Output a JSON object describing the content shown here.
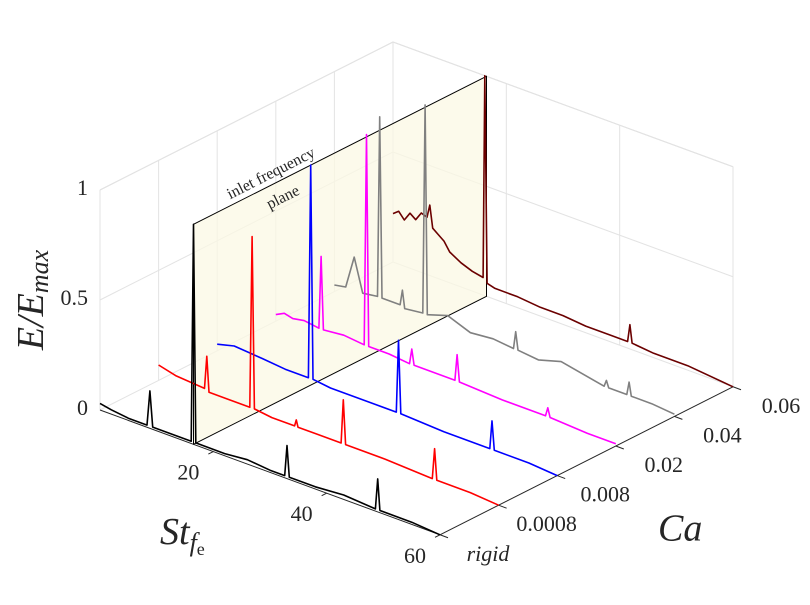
{
  "chart_data": {
    "type": "waterfall",
    "ylabel": "E/E",
    "ylabel_sub": "max",
    "xlabel": "St",
    "xlabel_sub": "f",
    "xlabel_subsub": "e",
    "zlabel": "Ca",
    "categories": [
      "rigid",
      "0.0008",
      "0.008",
      "0.02",
      "0.04",
      "0.06"
    ],
    "xlim": [
      0,
      60
    ],
    "xticks": [
      20,
      40,
      60
    ],
    "ylim": [
      0,
      1
    ],
    "yticks": [
      0,
      0.5,
      1
    ],
    "grid": true,
    "annotation": {
      "text": [
        "inlet frequency",
        "plane"
      ],
      "x": 16.5
    },
    "series": [
      {
        "color": "#000000",
        "x": [
          0,
          2,
          5,
          8.3,
          8.8,
          9.3,
          12,
          16.1,
          16.5,
          16.9,
          22,
          26,
          30,
          32.6,
          33,
          33.4,
          38,
          43,
          48.6,
          49,
          49.4,
          55,
          60
        ],
        "values": [
          0.03,
          0.02,
          0.01,
          0.01,
          0.17,
          0.01,
          0.01,
          0.01,
          1.0,
          0.01,
          0.01,
          0.02,
          0.01,
          0.01,
          0.15,
          0.01,
          0.01,
          0.02,
          0.01,
          0.15,
          0.01,
          0.01,
          0.0
        ]
      },
      {
        "color": "#ff0000",
        "x": [
          0,
          3,
          8.1,
          8.5,
          8.9,
          12,
          16.1,
          16.5,
          16.9,
          20,
          24,
          24.3,
          24.6,
          28,
          32.2,
          32.6,
          33,
          40,
          48.3,
          48.7,
          49.1,
          55,
          60
        ],
        "values": [
          0.07,
          0.05,
          0.04,
          0.19,
          0.03,
          0.03,
          0.03,
          0.81,
          0.03,
          0.02,
          0.02,
          0.05,
          0.02,
          0.02,
          0.02,
          0.22,
          0.02,
          0.02,
          0.01,
          0.15,
          0.01,
          0.01,
          0.0
        ]
      },
      {
        "color": "#0000ff",
        "x": [
          0,
          3,
          8,
          12,
          16.1,
          16.5,
          16.9,
          20,
          28,
          31.6,
          32,
          32.4,
          40,
          48.1,
          48.5,
          48.9,
          55,
          60
        ],
        "values": [
          0.03,
          0.05,
          0.04,
          0.03,
          0.03,
          1.0,
          0.03,
          0.02,
          0.02,
          0.02,
          0.35,
          0.02,
          0.01,
          0.01,
          0.14,
          0.01,
          0.01,
          0.0
        ]
      },
      {
        "color": "#ff00ff",
        "x": [
          0,
          1.5,
          3,
          5,
          7.6,
          8,
          8.4,
          12,
          15.6,
          16,
          16.4,
          20,
          23.6,
          24,
          24.4,
          28,
          31.6,
          32,
          32.4,
          40,
          47.6,
          48,
          48.4,
          55,
          60
        ],
        "values": [
          0.03,
          0.05,
          0.04,
          0.05,
          0.04,
          0.37,
          0.04,
          0.05,
          0.04,
          1.0,
          0.04,
          0.04,
          0.03,
          0.1,
          0.03,
          0.03,
          0.03,
          0.15,
          0.03,
          0.02,
          0.02,
          0.06,
          0.02,
          0.01,
          0.01
        ]
      },
      {
        "color": "#808080",
        "x": [
          0,
          2,
          3.5,
          5,
          7.6,
          8,
          8.4,
          11.6,
          12,
          12.4,
          15.6,
          16,
          16.4,
          20,
          24,
          28,
          31.6,
          32,
          32.4,
          36,
          40,
          47.6,
          48,
          48.4,
          51.6,
          52,
          52.4,
          56,
          60
        ],
        "values": [
          0.03,
          0.04,
          0.19,
          0.04,
          0.05,
          0.87,
          0.05,
          0.05,
          0.12,
          0.04,
          0.05,
          1.0,
          0.05,
          0.08,
          0.04,
          0.05,
          0.04,
          0.12,
          0.04,
          0.03,
          0.06,
          0.02,
          0.05,
          0.02,
          0.02,
          0.08,
          0.02,
          0.02,
          0.01
        ]
      },
      {
        "color": "#6b0000",
        "x": [
          0,
          1,
          2,
          3,
          4,
          5,
          6,
          6.5,
          7,
          8,
          9,
          10,
          12,
          14,
          15.9,
          16.2,
          16.6,
          18,
          22,
          26,
          30,
          34,
          38,
          41.4,
          41.8,
          42.2,
          46,
          52,
          60
        ],
        "values": [
          0.22,
          0.24,
          0.21,
          0.25,
          0.23,
          0.27,
          0.26,
          0.32,
          0.22,
          0.2,
          0.18,
          0.14,
          0.11,
          0.09,
          0.08,
          1.0,
          0.06,
          0.05,
          0.05,
          0.04,
          0.04,
          0.03,
          0.03,
          0.03,
          0.11,
          0.03,
          0.02,
          0.02,
          0.0
        ]
      }
    ]
  }
}
